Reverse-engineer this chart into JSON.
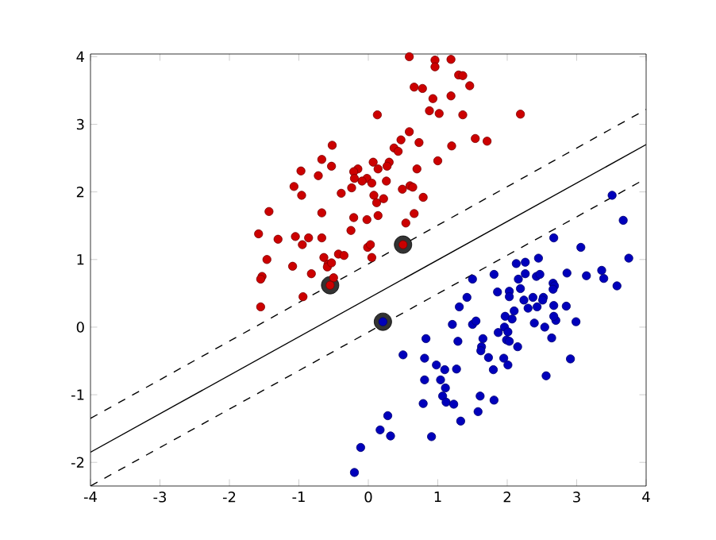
{
  "chart_data": {
    "type": "scatter",
    "grid": false,
    "xlim": [
      -4,
      4
    ],
    "ylim": [
      -2.35,
      4.04
    ],
    "xticks": [
      -4,
      -3,
      -2,
      -1,
      0,
      1,
      2,
      3,
      4
    ],
    "yticks": [
      -2,
      -1,
      0,
      1,
      2,
      3,
      4
    ],
    "series": [
      {
        "type": "bubble",
        "marker": "circle",
        "color": "#333333",
        "x": [
          -0.55,
          0.5,
          0.21
        ],
        "values": [
          0.62,
          1.22,
          0.08
        ],
        "sizes": [
          1,
          1,
          1
        ]
      },
      {
        "marker": "circle",
        "color": "#cc0000",
        "x": [
          0.13,
          -0.52,
          -0.67,
          -0.53,
          -0.97,
          -0.72,
          0.07,
          0.14,
          -0.15,
          -0.21,
          -0.2,
          -0.02,
          -0.09,
          0.05,
          -1.07,
          -0.24,
          -0.96,
          -0.39,
          0.08,
          0.12,
          -1.43,
          -0.67,
          0.14,
          -0.21,
          -0.02,
          -1.58,
          -0.25,
          -1.05,
          -1.3,
          -0.86,
          -0.67,
          -0.95,
          -0.01,
          0.03,
          -0.43,
          -0.35,
          -0.64,
          0.05,
          -1.46,
          -0.58,
          -1.09,
          -0.59,
          -1.53,
          -0.82,
          -0.5,
          0.66,
          0.54,
          -0.53,
          -1.55,
          -0.94,
          -1.55,
          -0.55,
          0.5,
          0.59,
          0.96,
          1.19,
          0.96,
          1.3,
          1.36,
          0.66,
          0.78,
          1.46,
          0.93,
          1.19,
          0.88,
          1.02,
          1.36,
          2.19,
          0.59,
          0.47,
          0.73,
          1.54,
          1.71,
          1.2,
          0.37,
          0.43,
          1.0,
          0.3,
          0.27,
          0.7,
          0.26,
          0.49,
          0.6,
          0.64,
          0.79,
          0.22
        ],
        "values": [
          3.14,
          2.69,
          2.48,
          2.38,
          2.31,
          2.24,
          2.44,
          2.34,
          2.34,
          2.3,
          2.2,
          2.2,
          2.16,
          2.13,
          2.08,
          2.06,
          1.95,
          1.98,
          1.95,
          1.84,
          1.71,
          1.69,
          1.65,
          1.62,
          1.59,
          1.38,
          1.43,
          1.34,
          1.3,
          1.32,
          1.32,
          1.22,
          1.18,
          1.22,
          1.08,
          1.06,
          1.03,
          1.03,
          1.0,
          0.93,
          0.9,
          0.89,
          0.75,
          0.79,
          0.73,
          1.68,
          1.54,
          0.95,
          0.71,
          0.45,
          0.3,
          0.62,
          1.22,
          4.0,
          3.95,
          3.96,
          3.85,
          3.73,
          3.72,
          3.55,
          3.53,
          3.57,
          3.38,
          3.42,
          3.2,
          3.16,
          3.14,
          3.15,
          2.89,
          2.77,
          2.73,
          2.79,
          2.75,
          2.68,
          2.65,
          2.6,
          2.46,
          2.44,
          2.38,
          2.34,
          2.16,
          2.04,
          2.09,
          2.07,
          1.92,
          1.9
        ]
      },
      {
        "marker": "circle",
        "color": "#0000bb",
        "x": [
          3.51,
          3.67,
          3.75,
          2.67,
          3.06,
          2.13,
          2.26,
          2.45,
          1.81,
          1.5,
          2.16,
          2.26,
          2.42,
          2.47,
          2.86,
          3.14,
          3.36,
          3.39,
          3.58,
          2.66,
          2.68,
          2.66,
          2.19,
          1.86,
          2.03,
          2.03,
          1.42,
          1.31,
          2.24,
          2.37,
          2.52,
          2.3,
          2.43,
          2.51,
          2.67,
          2.85,
          2.1,
          1.97,
          2.07,
          1.21,
          1.5,
          1.55,
          2.39,
          2.7,
          2.67,
          2.99,
          2.54,
          1.96,
          2.01,
          1.87,
          1.99,
          2.03,
          2.15,
          2.64,
          0.83,
          1.29,
          1.65,
          1.63,
          1.62,
          1.73,
          1.95,
          2.91,
          0.5,
          0.81,
          0.98,
          1.1,
          1.27,
          1.8,
          2.01,
          2.56,
          0.81,
          1.04,
          1.11,
          1.07,
          1.12,
          1.23,
          0.79,
          1.61,
          1.81,
          1.58,
          1.33,
          0.28,
          0.17,
          0.32,
          0.91,
          -0.11,
          -0.2,
          0.21
        ],
        "values": [
          1.95,
          1.58,
          1.02,
          1.32,
          1.18,
          0.94,
          0.96,
          1.02,
          0.78,
          0.71,
          0.71,
          0.79,
          0.75,
          0.78,
          0.8,
          0.76,
          0.84,
          0.72,
          0.61,
          0.65,
          0.61,
          0.56,
          0.57,
          0.52,
          0.53,
          0.45,
          0.44,
          0.3,
          0.4,
          0.44,
          0.44,
          0.28,
          0.3,
          0.4,
          0.32,
          0.31,
          0.24,
          0.16,
          0.12,
          0.04,
          0.04,
          0.09,
          0.06,
          0.1,
          0.16,
          0.08,
          0.0,
          0.0,
          -0.07,
          -0.08,
          -0.19,
          -0.21,
          -0.29,
          -0.16,
          -0.17,
          -0.21,
          -0.17,
          -0.29,
          -0.35,
          -0.45,
          -0.46,
          -0.47,
          -0.41,
          -0.46,
          -0.56,
          -0.63,
          -0.62,
          -0.63,
          -0.56,
          -0.72,
          -0.78,
          -0.78,
          -0.9,
          -1.02,
          -1.11,
          -1.14,
          -1.13,
          -1.02,
          -1.08,
          -1.25,
          -1.39,
          -1.31,
          -1.52,
          -1.61,
          -1.62,
          -1.78,
          -2.15,
          0.08
        ]
      },
      {
        "type": "line",
        "color": "#000000",
        "line_style": "solid",
        "marker": "none",
        "x": [
          -4,
          4
        ],
        "values": [
          -1.85,
          2.7
        ]
      },
      {
        "type": "line",
        "color": "#000000",
        "line_style": "dashed",
        "marker": "none",
        "x": [
          -4,
          4
        ],
        "values": [
          -1.35,
          3.22
        ]
      },
      {
        "type": "line",
        "color": "#000000",
        "line_style": "dashed",
        "marker": "none",
        "x": [
          -4,
          4
        ],
        "values": [
          -2.35,
          2.2
        ]
      }
    ]
  }
}
